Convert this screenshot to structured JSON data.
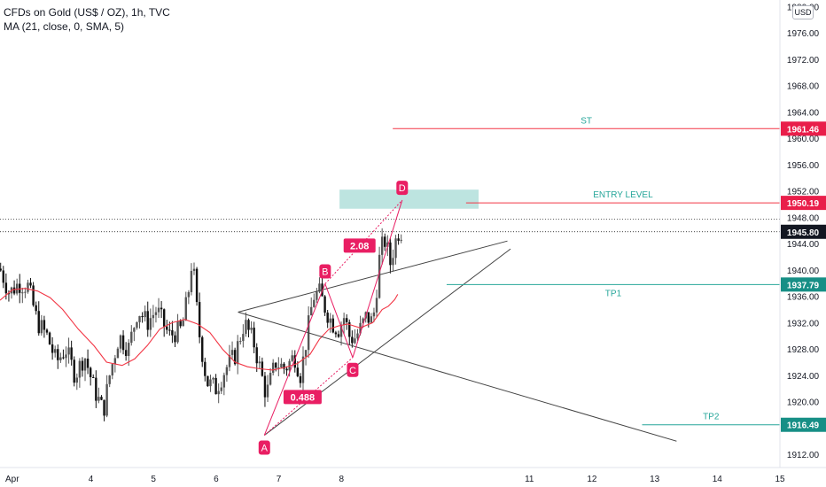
{
  "header": {
    "title": "CFDs on Gold (US$ / OZ), 1h, TVC",
    "indicator": "MA (21, close, 0, SMA, 5)",
    "currency": "USD"
  },
  "colors": {
    "up": "#555555",
    "down": "#111111",
    "ma": "#f23645",
    "pink": "#e91e63",
    "teal": "#26a69a",
    "entry_box": "#b2dfdb",
    "axis_text": "#131722",
    "grid_line": "#000000"
  },
  "chart_data": {
    "type": "candlestick",
    "symbol": "CFDs on Gold (US$ / OZ)",
    "timeframe": "1h",
    "y_axis": {
      "range": [
        1910,
        1981
      ],
      "ticks": [
        1912,
        1916,
        1920,
        1924,
        1928,
        1932,
        1936,
        1940,
        1944,
        1948,
        1952,
        1956,
        1960,
        1964,
        1968,
        1972,
        1976,
        1980
      ]
    },
    "x_axis": {
      "range": [
        2.55,
        15.0
      ],
      "ticks": [
        {
          "value": 3,
          "label": "Apr"
        },
        {
          "value": 4,
          "label": "4"
        },
        {
          "value": 5,
          "label": "5"
        },
        {
          "value": 6,
          "label": "6"
        },
        {
          "value": 7,
          "label": "7"
        },
        {
          "value": 8,
          "label": "8"
        },
        {
          "value": 11,
          "label": "11"
        },
        {
          "value": 12,
          "label": "12"
        },
        {
          "value": 13,
          "label": "13"
        },
        {
          "value": 14,
          "label": "14"
        },
        {
          "value": 15,
          "label": "15"
        }
      ]
    },
    "close_path": [
      [
        2.55,
        1940.2
      ],
      [
        2.7,
        1936.5
      ],
      [
        2.85,
        1938.0
      ],
      [
        3.0,
        1937.5
      ],
      [
        3.15,
        1932.0
      ],
      [
        3.3,
        1930.0
      ],
      [
        3.45,
        1926.0
      ],
      [
        3.6,
        1928.0
      ],
      [
        3.75,
        1924.0
      ],
      [
        3.9,
        1927.0
      ],
      [
        4.05,
        1922.0
      ],
      [
        4.2,
        1918.5
      ],
      [
        4.3,
        1924.0
      ],
      [
        4.45,
        1930.0
      ],
      [
        4.6,
        1928.0
      ],
      [
        4.75,
        1934.0
      ],
      [
        4.9,
        1932.0
      ],
      [
        5.05,
        1934.0
      ],
      [
        5.25,
        1930.0
      ],
      [
        5.45,
        1931.0
      ],
      [
        5.55,
        1936.0
      ],
      [
        5.62,
        1942.0
      ],
      [
        5.72,
        1931.0
      ],
      [
        5.85,
        1923.0
      ],
      [
        6.0,
        1922.0
      ],
      [
        6.15,
        1925.0
      ],
      [
        6.3,
        1927.0
      ],
      [
        6.45,
        1932.0
      ],
      [
        6.6,
        1929.0
      ],
      [
        6.8,
        1921.0
      ],
      [
        6.95,
        1926.0
      ],
      [
        7.1,
        1925.0
      ],
      [
        7.25,
        1927.0
      ],
      [
        7.35,
        1924.0
      ],
      [
        7.45,
        1930.0
      ],
      [
        7.55,
        1936.0
      ],
      [
        7.65,
        1936.5
      ],
      [
        7.75,
        1934.0
      ],
      [
        7.85,
        1932.0
      ],
      [
        7.95,
        1931.0
      ],
      [
        8.05,
        1933.0
      ],
      [
        8.12,
        1930.0
      ],
      [
        8.2,
        1929.5
      ],
      [
        8.3,
        1931.0
      ],
      [
        8.4,
        1933.0
      ],
      [
        8.5,
        1932.0
      ],
      [
        8.55,
        1936.0
      ],
      [
        8.62,
        1943.0
      ],
      [
        8.7,
        1944.5
      ],
      [
        8.78,
        1941.0
      ],
      [
        8.85,
        1944.0
      ],
      [
        8.92,
        1946.0
      ],
      [
        8.98,
        1945.8
      ]
    ],
    "ma": {
      "label": "MA (21, close, 0, SMA, 5)",
      "values": [
        [
          2.55,
          1935.4
        ],
        [
          2.75,
          1937.0
        ],
        [
          2.95,
          1937.2
        ],
        [
          3.15,
          1936.8
        ],
        [
          3.35,
          1935.8
        ],
        [
          3.55,
          1934.0
        ],
        [
          3.8,
          1931.0
        ],
        [
          4.05,
          1928.5
        ],
        [
          4.25,
          1926.0
        ],
        [
          4.5,
          1925.5
        ],
        [
          4.7,
          1926.5
        ],
        [
          4.9,
          1928.5
        ],
        [
          5.1,
          1931.0
        ],
        [
          5.3,
          1932.0
        ],
        [
          5.5,
          1932.5
        ],
        [
          5.7,
          1931.8
        ],
        [
          5.9,
          1930.5
        ],
        [
          6.1,
          1928.0
        ],
        [
          6.3,
          1926.0
        ],
        [
          6.5,
          1925.3
        ],
        [
          6.7,
          1925.0
        ],
        [
          6.9,
          1924.8
        ],
        [
          7.1,
          1925.2
        ],
        [
          7.3,
          1925.8
        ],
        [
          7.5,
          1927.2
        ],
        [
          7.65,
          1929.5
        ],
        [
          7.8,
          1931.0
        ],
        [
          7.95,
          1931.5
        ],
        [
          8.1,
          1931.8
        ],
        [
          8.3,
          1931.2
        ],
        [
          8.5,
          1932.0
        ],
        [
          8.65,
          1934.0
        ],
        [
          8.75,
          1934.5
        ],
        [
          8.85,
          1935.5
        ],
        [
          8.9,
          1936.3
        ]
      ]
    },
    "current_price": 1945.8,
    "levels": [
      {
        "name": "ST",
        "price": 1961.46,
        "price_label": "1961.46",
        "color": "#f23645",
        "x_start": 8.82,
        "x_end": 15.0
      },
      {
        "name": "ENTRY LEVEL",
        "price": 1950.19,
        "price_label": "1950.19",
        "color": "#f23645",
        "x_start": 9.99,
        "x_end": 15.0
      },
      {
        "name": "TP1",
        "price": 1937.79,
        "price_label": "1937.79",
        "color": "#26a69a",
        "x_start": 9.68,
        "x_end": 15.0
      },
      {
        "name": "TP2",
        "price": 1916.49,
        "price_label": "1916.49",
        "color": "#26a69a",
        "x_start": 12.8,
        "x_end": 15.0
      }
    ],
    "current_price_label": "1945.80",
    "entry_zone": {
      "x_start": 7.97,
      "x_end": 10.19,
      "price_top": 1952.2,
      "price_bottom": 1949.3
    },
    "harmonic_points": [
      {
        "label": "A",
        "x": 6.77,
        "price": 1914.9
      },
      {
        "label": "B",
        "x": 7.74,
        "price": 1937.9
      },
      {
        "label": "C",
        "x": 8.18,
        "price": 1926.7
      },
      {
        "label": "D",
        "x": 8.97,
        "price": 1950.6
      }
    ],
    "ratios": [
      {
        "label": "0.488",
        "x": 7.38,
        "price": 1920.7
      },
      {
        "label": "2.08",
        "x": 8.29,
        "price": 1943.7
      }
    ],
    "trendlines": [
      {
        "from": [
          6.35,
          1933.6
        ],
        "to": [
          10.65,
          1944.4
        ],
        "color": "#444444"
      },
      {
        "from": [
          6.77,
          1914.9
        ],
        "to": [
          10.7,
          1943.2
        ],
        "color": "#444444"
      },
      {
        "from": [
          6.35,
          1933.6
        ],
        "to": [
          13.35,
          1914.0
        ],
        "color": "#444444"
      }
    ]
  }
}
